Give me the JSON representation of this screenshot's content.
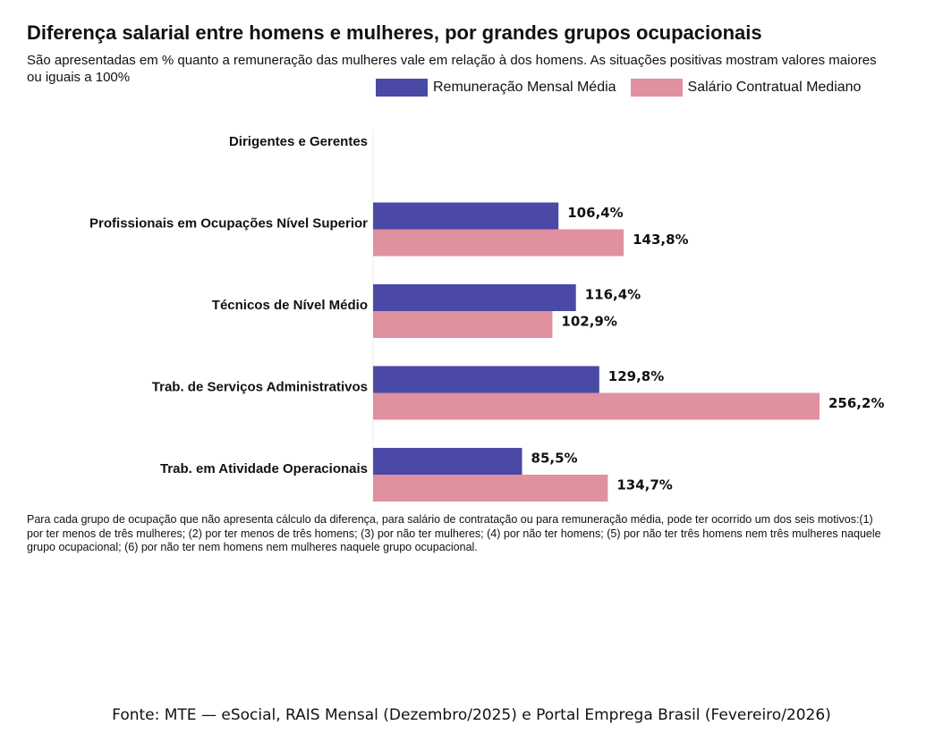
{
  "title": "Diferença salarial entre homens e mulheres, por grandes grupos ocupacionais",
  "subtitle": "São apresentadas em % quanto a remuneração das mulheres vale em relação à dos homens. As situações positivas mostram valores maiores ou iguais a 100%",
  "legend": {
    "series1": "Remuneração Mensal Média",
    "series2": "Salário Contratual Mediano"
  },
  "colors": {
    "series1": "#4a4aa6",
    "series2": "#e0909f"
  },
  "chart_data": {
    "type": "bar",
    "orientation": "horizontal",
    "title": "Diferença salarial entre homens e mulheres, por grandes grupos ocupacionais",
    "categories": [
      "Dirigentes e Gerentes",
      "Profissionais em Ocupações Nível Superior",
      "Técnicos de Nível Médio",
      "Trab. de Serviços Administrativos",
      "Trab. em Atividade Operacionais"
    ],
    "series": [
      {
        "name": "Remuneração Mensal Média",
        "values": [
          null,
          106.4,
          116.4,
          129.8,
          85.5
        ],
        "labels": [
          "",
          "106,4%",
          "116,4%",
          "129,8%",
          "85,5%"
        ]
      },
      {
        "name": "Salário Contratual Mediano",
        "values": [
          null,
          143.8,
          102.9,
          256.2,
          134.7
        ],
        "labels": [
          "",
          "143,8%",
          "102,9%",
          "256,2%",
          "134,7%"
        ]
      }
    ],
    "xlim": [
      0,
      256.2
    ],
    "xlabel": "",
    "ylabel": "",
    "legend_position": "top-right",
    "grid": false
  },
  "footnote": "Para cada grupo de ocupação que não apresenta cálculo da diferença, para salário de contratação ou para remuneração média, pode ter ocorrido um dos seis motivos:(1) por ter menos de três mulheres; (2) por ter menos de três homens; (3) por não ter mulheres; (4) por não ter homens; (5) por não ter três homens nem três mulheres naquele grupo ocupacional; (6) por não ter nem homens nem mulheres naquele grupo ocupacional.",
  "source": "Fonte: MTE — eSocial, RAIS Mensal (Dezembro/2025) e Portal Emprega Brasil (Fevereiro/2026)"
}
